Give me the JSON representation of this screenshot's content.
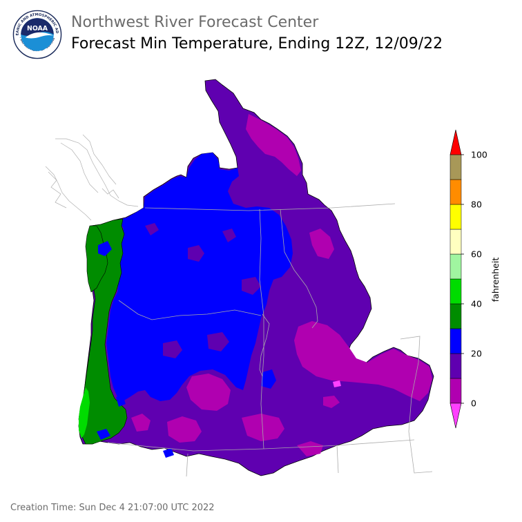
{
  "header": {
    "org_name": "Northwest River Forecast Center",
    "product_title": "Forecast Min Temperature, Ending 12Z, 12/09/22"
  },
  "logo": {
    "center_text": "NOAA",
    "ring_text_top": "NATIONAL OCEANIC AND ATMOSPHERIC ADMINISTRATION",
    "ring_text_bottom": "U.S. DEPARTMENT OF COMMERCE"
  },
  "legend": {
    "unit": "fahrenheit",
    "tick_labels": [
      "0",
      "20",
      "40",
      "60",
      "80",
      "100"
    ],
    "bins": [
      {
        "min": 0,
        "max": 10,
        "color": "#b000b0"
      },
      {
        "min": 10,
        "max": 20,
        "color": "#5f00b0"
      },
      {
        "min": 20,
        "max": 30,
        "color": "#0000ff"
      },
      {
        "min": 30,
        "max": 40,
        "color": "#008c00"
      },
      {
        "min": 40,
        "max": 50,
        "color": "#00dc00"
      },
      {
        "min": 50,
        "max": 60,
        "color": "#a0f5a0"
      },
      {
        "min": 60,
        "max": 70,
        "color": "#ffffc0"
      },
      {
        "min": 70,
        "max": 80,
        "color": "#ffff00"
      },
      {
        "min": 80,
        "max": 90,
        "color": "#ff8c00"
      },
      {
        "min": 90,
        "max": 100,
        "color": "#a89858"
      }
    ],
    "under_color": "#ff40ff",
    "over_color": "#ff0000"
  },
  "footer": {
    "creation_time": "Creation Time: Sun Dec 4 21:07:00 UTC 2022"
  }
}
